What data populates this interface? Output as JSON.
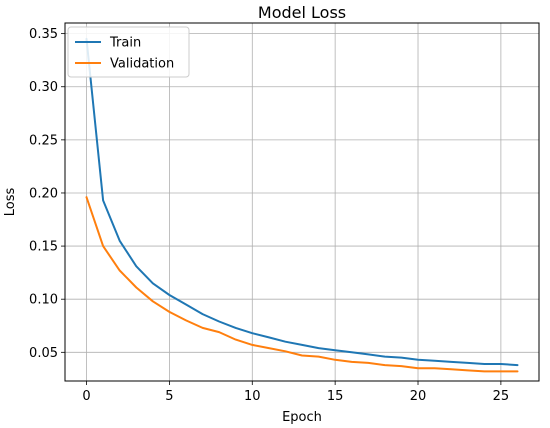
{
  "chart_data": {
    "type": "line",
    "title": "Model Loss",
    "xlabel": "Epoch",
    "ylabel": "Loss",
    "xlim": [
      -1.3,
      27.3
    ],
    "ylim": [
      0.023,
      0.36
    ],
    "xticks": [
      0,
      5,
      10,
      15,
      20,
      25
    ],
    "yticks": [
      0.05,
      0.1,
      0.15,
      0.2,
      0.25,
      0.3,
      0.35
    ],
    "ytick_labels": [
      "0.05",
      "0.10",
      "0.15",
      "0.20",
      "0.25",
      "0.30",
      "0.35"
    ],
    "grid": true,
    "legend_position": "top-left",
    "x": [
      0,
      1,
      2,
      3,
      4,
      5,
      6,
      7,
      8,
      9,
      10,
      11,
      12,
      13,
      14,
      15,
      16,
      17,
      18,
      19,
      20,
      21,
      22,
      23,
      24,
      25,
      26
    ],
    "series": [
      {
        "name": "Train",
        "color": "#1f77b4",
        "values": [
          0.345,
          0.193,
          0.155,
          0.131,
          0.115,
          0.104,
          0.095,
          0.086,
          0.079,
          0.073,
          0.068,
          0.064,
          0.06,
          0.057,
          0.054,
          0.052,
          0.05,
          0.048,
          0.046,
          0.045,
          0.043,
          0.042,
          0.041,
          0.04,
          0.039,
          0.039,
          0.038
        ]
      },
      {
        "name": "Validation",
        "color": "#ff7f0e",
        "values": [
          0.196,
          0.15,
          0.127,
          0.111,
          0.098,
          0.088,
          0.08,
          0.073,
          0.069,
          0.062,
          0.057,
          0.054,
          0.051,
          0.047,
          0.046,
          0.043,
          0.041,
          0.04,
          0.038,
          0.037,
          0.035,
          0.035,
          0.034,
          0.033,
          0.032,
          0.032,
          0.032
        ]
      }
    ]
  }
}
